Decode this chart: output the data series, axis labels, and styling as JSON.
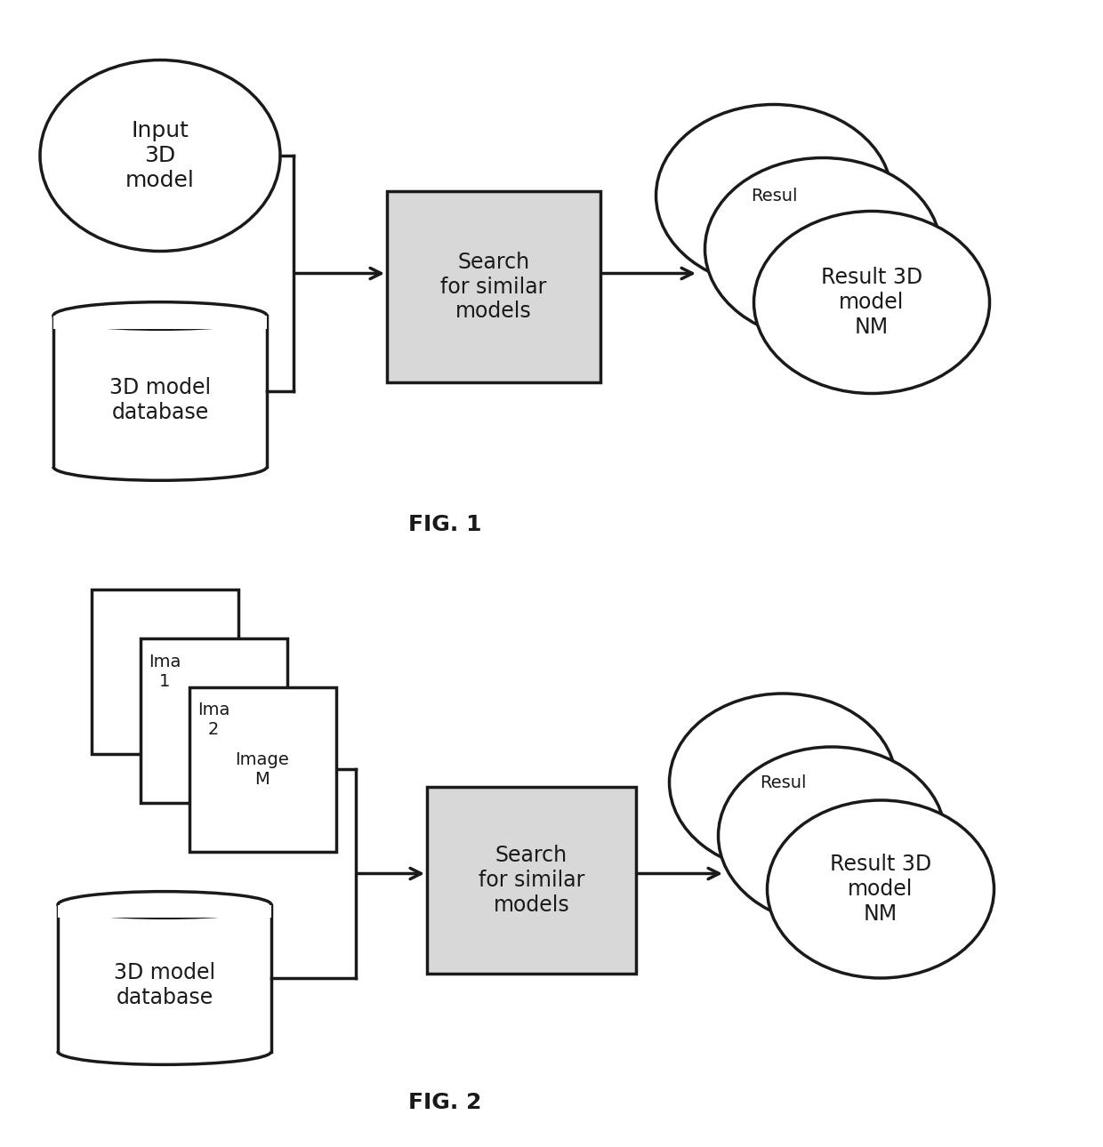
{
  "fig1_label": "FIG. 1",
  "fig2_label": "FIG. 2",
  "search_box_text": "Search\nfor similar\nmodels",
  "result_front_text": "Result 3D\nmodel\nNM",
  "result_back_text": "Resul",
  "db_text": "3D model\ndatabase",
  "input_ellipse_text": "Input\n3D\nmodel",
  "image_stacked_labels": [
    "Ima\n1",
    "Ima\n2",
    "Image\nM"
  ],
  "bg_color": "#ffffff",
  "line_color": "#1a1a1a",
  "box_fill": "#d8d8d8",
  "text_color": "#1a1a1a",
  "lw": 2.0
}
